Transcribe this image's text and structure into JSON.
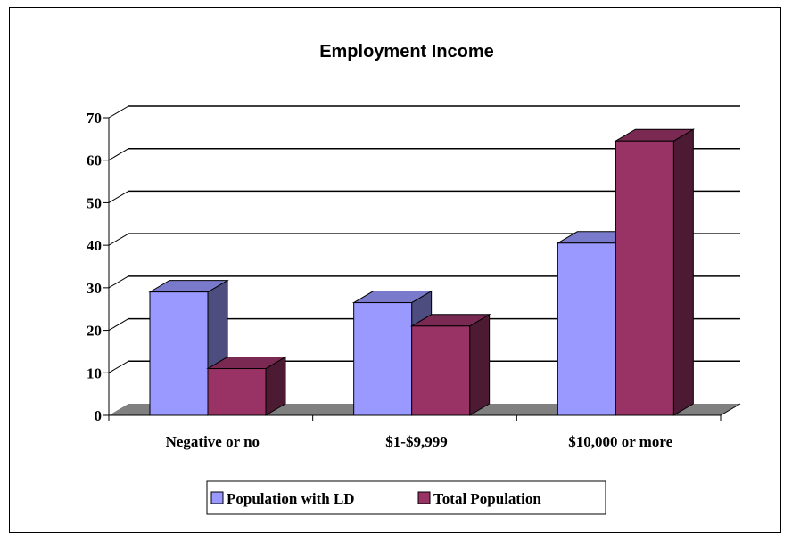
{
  "chart_data": {
    "type": "bar",
    "title": "Employment Income",
    "xlabel": "",
    "ylabel": "",
    "categories": [
      "Negative or no",
      "$1-$9,999",
      "$10,000 or more"
    ],
    "series": [
      {
        "name": "Population with LD",
        "values": [
          29,
          26.5,
          40.5
        ],
        "color": "#9999ff",
        "side_color": "#4d4d80",
        "top_color": "#7a7acc"
      },
      {
        "name": "Total Population",
        "values": [
          11,
          21,
          64.5
        ],
        "color": "#993366",
        "side_color": "#4d1a33",
        "top_color": "#7a2952"
      }
    ],
    "ylim": [
      0,
      70
    ],
    "yticks": [
      "0",
      "10",
      "20",
      "30",
      "40",
      "50",
      "60",
      "70"
    ],
    "grid": true,
    "legend_position": "bottom",
    "floor_color": "#808080"
  }
}
